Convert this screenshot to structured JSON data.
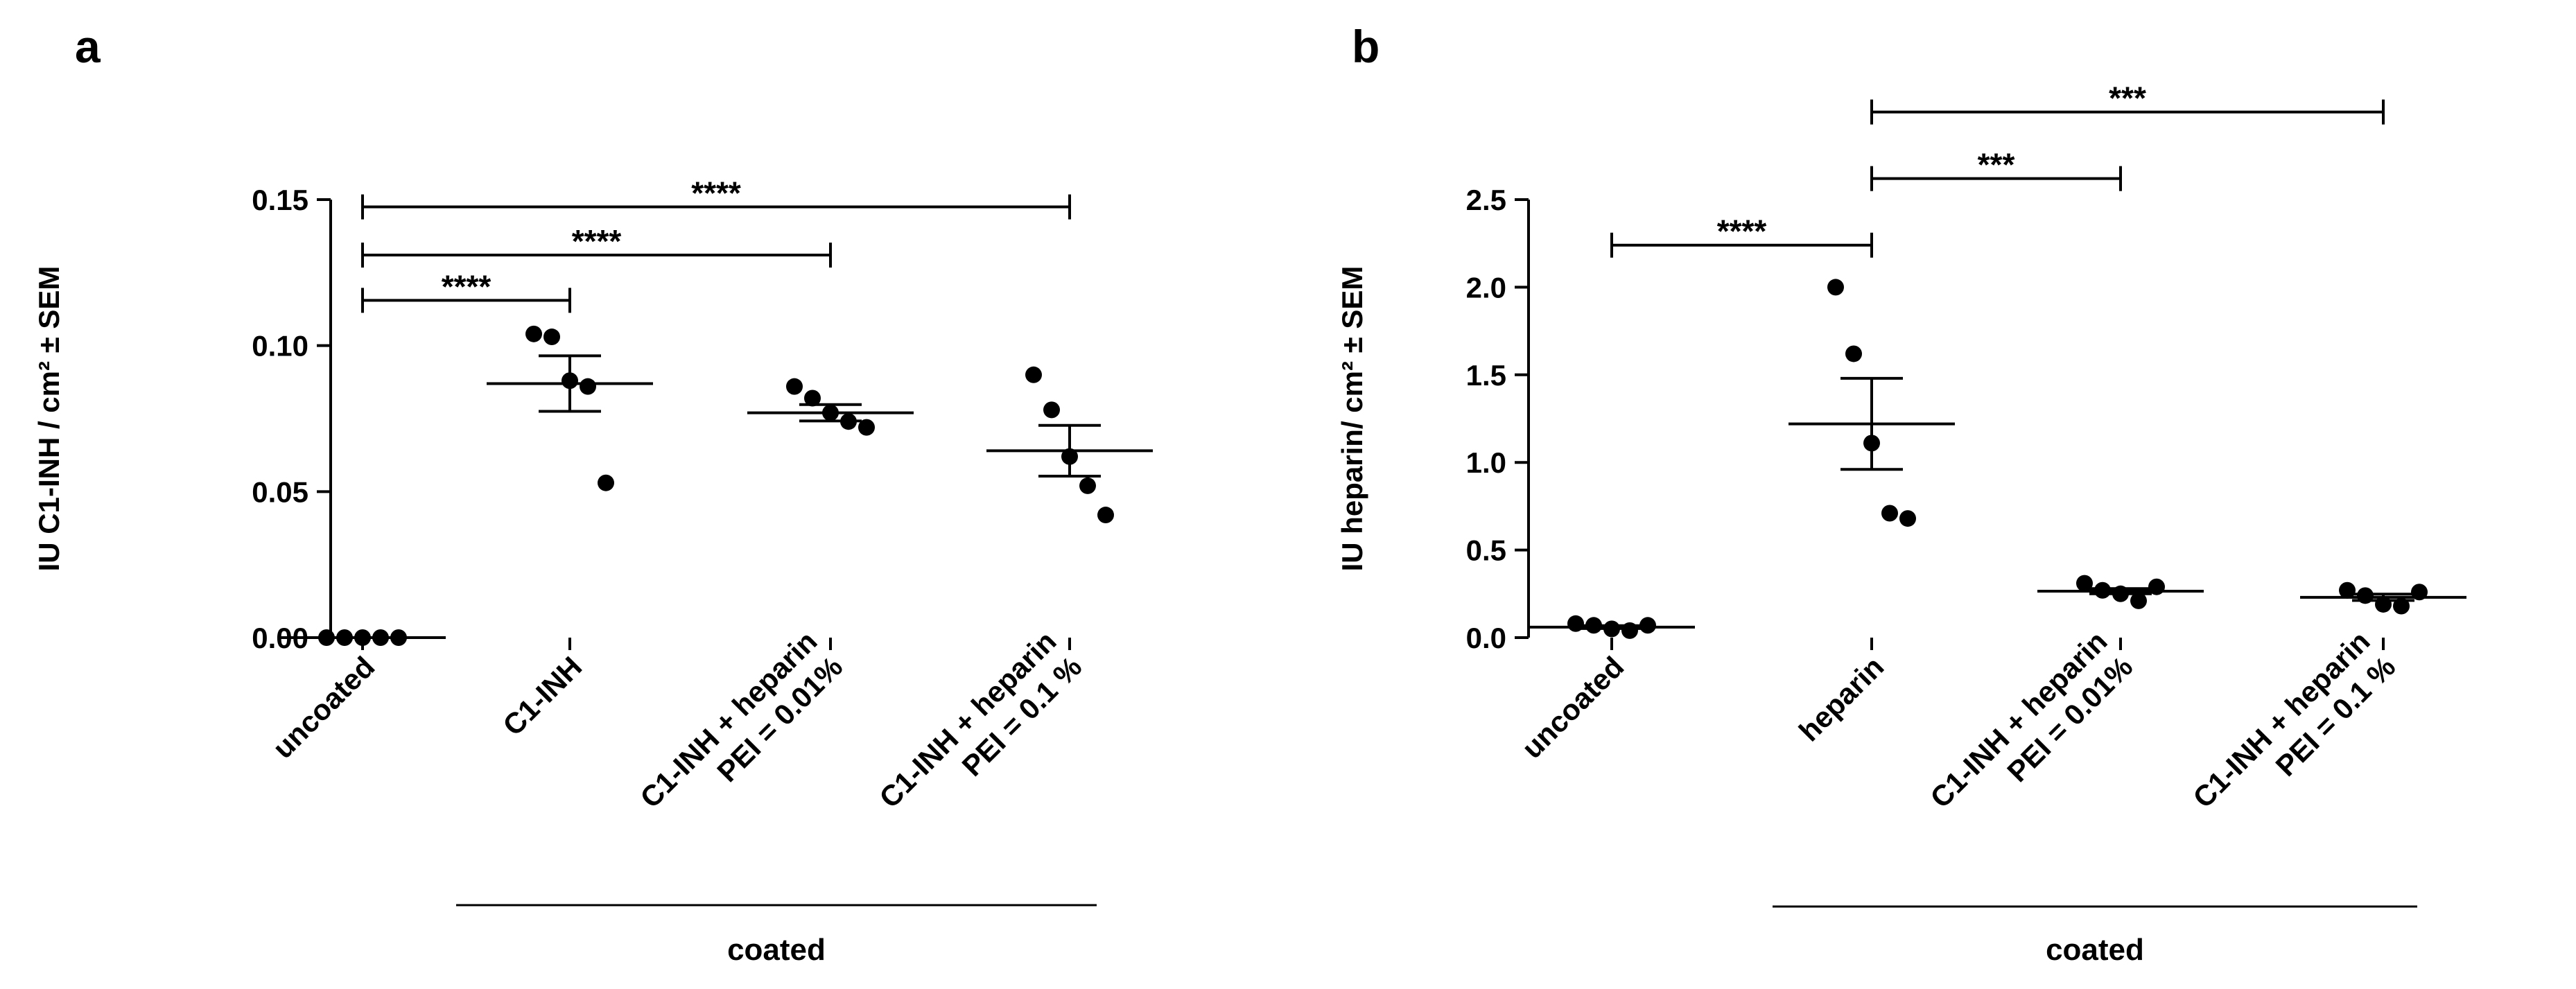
{
  "chart_data": [
    {
      "panel": "a",
      "type": "scatter",
      "ylabel": "IU C1-INH / cm² ± SEM",
      "ylim": [
        0,
        0.15
      ],
      "yticks": [
        0.0,
        0.05,
        0.1,
        0.15
      ],
      "ytick_labels": [
        "0.00",
        "0.05",
        "0.10",
        "0.15"
      ],
      "categories": [
        {
          "lines": [
            "uncoated"
          ]
        },
        {
          "lines": [
            "C1-INH"
          ]
        },
        {
          "lines": [
            "C1-INH + heparin",
            "PEI = 0.01%"
          ]
        },
        {
          "lines": [
            "C1-INH + heparin",
            "PEI = 0.1 %"
          ]
        }
      ],
      "series": [
        {
          "points": [
            0,
            0,
            0,
            0,
            0
          ],
          "mean": 0.0,
          "sem": 0.0
        },
        {
          "points": [
            0.104,
            0.103,
            0.088,
            0.086,
            0.053
          ],
          "mean": 0.087,
          "sem": 0.0095
        },
        {
          "points": [
            0.086,
            0.082,
            0.077,
            0.074,
            0.072
          ],
          "mean": 0.077,
          "sem": 0.0028
        },
        {
          "points": [
            0.09,
            0.078,
            0.062,
            0.052,
            0.042
          ],
          "mean": 0.064,
          "sem": 0.0087
        }
      ],
      "comparisons": [
        {
          "from": 0,
          "to": 1,
          "y": 0.1155,
          "label": "****"
        },
        {
          "from": 0,
          "to": 2,
          "y": 0.131,
          "label": "****"
        },
        {
          "from": 0,
          "to": 3,
          "y": 0.1475,
          "label": "****"
        }
      ],
      "group_bracket": {
        "from": 1,
        "to": 3,
        "label": "coated"
      }
    },
    {
      "panel": "b",
      "type": "scatter",
      "ylabel": "IU heparin/ cm² ± SEM",
      "ylim": [
        0,
        2.5
      ],
      "yticks": [
        0.0,
        0.5,
        1.0,
        1.5,
        2.0,
        2.5
      ],
      "ytick_labels": [
        "0.0",
        "0.5",
        "1.0",
        "1.5",
        "2.0",
        "2.5"
      ],
      "categories": [
        {
          "lines": [
            "uncoated"
          ]
        },
        {
          "lines": [
            "heparin"
          ]
        },
        {
          "lines": [
            "C1-INH + heparin",
            "PEI = 0.01%"
          ]
        },
        {
          "lines": [
            "C1-INH + heparin",
            "PEI = 0.1 %"
          ]
        }
      ],
      "series": [
        {
          "points": [
            0.08,
            0.07,
            0.05,
            0.04,
            0.07
          ],
          "mean": 0.06,
          "sem": 0.008
        },
        {
          "points": [
            2.0,
            1.62,
            1.11,
            0.71,
            0.68
          ],
          "mean": 1.22,
          "sem": 0.26
        },
        {
          "points": [
            0.31,
            0.27,
            0.25,
            0.21,
            0.29
          ],
          "mean": 0.265,
          "sem": 0.015
        },
        {
          "points": [
            0.27,
            0.24,
            0.19,
            0.18,
            0.26
          ],
          "mean": 0.23,
          "sem": 0.018
        }
      ],
      "comparisons": [
        {
          "from": 0,
          "to": 1,
          "y": 2.24,
          "label": "****"
        },
        {
          "from": 1,
          "to": 2,
          "y": 2.62,
          "label": "***"
        },
        {
          "from": 1,
          "to": 3,
          "y": 3.0,
          "label": "***"
        }
      ],
      "group_bracket": {
        "from": 1,
        "to": 3,
        "label": "coated"
      }
    }
  ]
}
